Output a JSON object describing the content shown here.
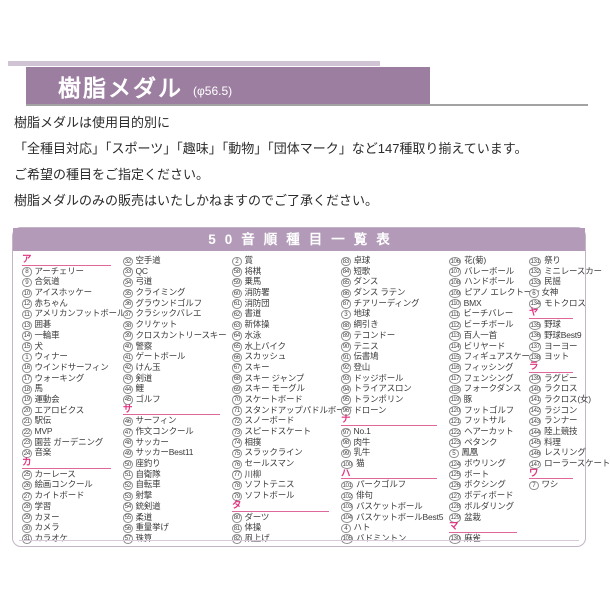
{
  "colors": {
    "accent_purple": "#9c7ea1",
    "table_header_purple": "#b29ab8",
    "section_pink": "#e0347f",
    "strip_lavender": "#cfc3d4"
  },
  "header": {
    "title": "樹脂メダル",
    "diameter": "(φ56.5)"
  },
  "description": {
    "lines": [
      "樹脂メダルは使用目的別に",
      "「全種目対応」「スポーツ」「趣味」「動物」「団体マーク」など147種取り揃えています。",
      "ご希望の種目をご指定ください。",
      "樹脂メダルのみの販売はいたしかねますのでご了承ください。"
    ]
  },
  "table": {
    "title": "50音順種目一覧表",
    "columns": [
      [
        "§ア",
        "8|アーチェリー",
        "9|合気道",
        "10|アイスホッケー",
        "12|赤ちゃん",
        "11|アメリカンフットボール",
        "13|囲碁",
        "14|一輪車",
        "15|犬",
        "1|ウィナー",
        "16|ウインドサーフィン",
        "17|ウォーキング",
        "18|馬",
        "19|運動会",
        "20|エアロビクス",
        "21|駅伝",
        "22|MVP",
        "23|園芸 ガーデニング",
        "24|音楽",
        "§カ",
        "25|カーレース",
        "26|絵画コンクール",
        "27|カイトボード",
        "28|学習",
        "29|カヌー",
        "30|カメラ",
        "31|カラオケ"
      ],
      [
        "32|空手道",
        "33|QC",
        "34|弓道",
        "35|クライミング",
        "36|グラウンドゴルフ",
        "37|クラシックバレエ",
        "38|クリケット",
        "39|クロスカントリースキー",
        "40|警察",
        "41|ゲートボール",
        "42|けん玉",
        "43|剣道",
        "44|鯉",
        "45|ゴルフ",
        "§サ",
        "46|サーフィン",
        "47|作文コンクール",
        "48|サッカー",
        "49|サッカーBest11",
        "50|座釣り",
        "51|自衛隊",
        "52|自転車",
        "53|射撃",
        "54|銃剣道",
        "55|柔道",
        "56|重量挙げ",
        "57|珠算"
      ],
      [
        "2|賞",
        "58|将棋",
        "59|乗馬",
        "60|消防署",
        "61|消防団",
        "62|書道",
        "63|新体操",
        "64|水泳",
        "65|水上バイク",
        "66|スカッシュ",
        "67|スキー",
        "68|スキー ジャンプ",
        "69|スキー モーグル",
        "70|スケートボード",
        "71|スタンドアップパドルボード",
        "72|スノーボード",
        "73|スピードスケート",
        "74|相撲",
        "75|スラックライン",
        "76|セールスマン",
        "77|川柳",
        "78|ソフトテニス",
        "79|ソフトボール",
        "§タ",
        "80|ダーツ",
        "81|体操",
        "82|凧上げ"
      ],
      [
        "83|卓球",
        "84|短歌",
        "85|ダンス",
        "86|ダンス ラテン",
        "87|チアリーディング",
        "3|地球",
        "88|綱引き",
        "89|テコンドー",
        "90|テニス",
        "91|伝書鳩",
        "92|登山",
        "93|ドッジボール",
        "94|トライアスロン",
        "95|トランポリン",
        "96|ドローン",
        "§ナ",
        "97|No.1",
        "98|肉牛",
        "99|乳牛",
        "100|猫",
        "§ハ",
        "101|パークゴルフ",
        "102|俳句",
        "103|バスケットボール",
        "104|バスケットボールBest5",
        "4|ハト",
        "105|バドミントン"
      ],
      [
        "106|花(菊)",
        "107|バレーボール",
        "108|ハンドボール",
        "109|ピアノ エレクトーン",
        "110|BMX",
        "111|ビーチバレー",
        "112|ビーチボール",
        "113|百人一首",
        "114|ビリヤード",
        "115|フィギュアスケート",
        "116|フィッシング",
        "117|フェンシング",
        "118|フォークダンス",
        "119|豚",
        "120|フットゴルフ",
        "121|フットサル",
        "122|ヘアーカット",
        "123|ペタンク",
        "5|鳳凰",
        "124|ボウリング",
        "125|ボート",
        "126|ボクシング",
        "127|ボディボード",
        "128|ボルダリング",
        "129|盆栽",
        "§マ",
        "130|麻雀"
      ],
      [
        "131|祭り",
        "132|ミニレースカー",
        "133|民謡",
        "6|女神",
        "134|モトクロス",
        "§ヤ",
        "135|野球",
        "136|野球Best9",
        "137|ヨーヨー",
        "138|ヨット",
        "§ラ",
        "139|ラグビー",
        "140|ラクロス",
        "141|ラクロス(女)",
        "142|ラジコン",
        "143|ランナー",
        "144|陸上競技",
        "145|料理",
        "146|レスリング",
        "147|ローラースケート",
        "§ワ",
        "7|ワシ"
      ]
    ]
  }
}
